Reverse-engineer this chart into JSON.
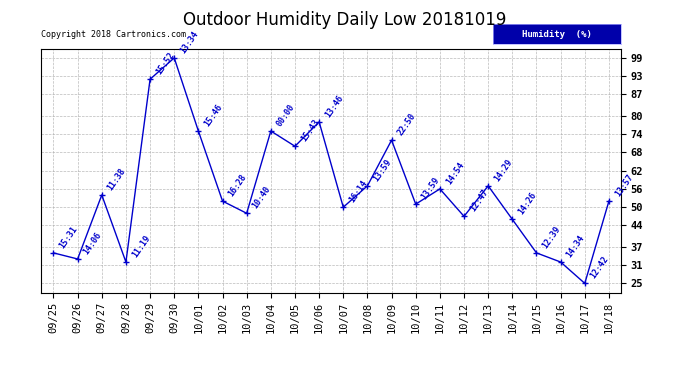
{
  "title": "Outdoor Humidity Daily Low 20181019",
  "copyright_text": "Copyright 2018 Cartronics.com",
  "legend_label": "Humidity  (%)",
  "x_labels": [
    "09/25",
    "09/26",
    "09/27",
    "09/28",
    "09/29",
    "09/30",
    "10/01",
    "10/02",
    "10/03",
    "10/04",
    "10/05",
    "10/06",
    "10/07",
    "10/08",
    "10/09",
    "10/10",
    "10/11",
    "10/12",
    "10/13",
    "10/14",
    "10/15",
    "10/16",
    "10/17",
    "10/18"
  ],
  "y_values": [
    35,
    33,
    54,
    32,
    92,
    99,
    75,
    52,
    48,
    75,
    70,
    78,
    50,
    57,
    72,
    51,
    56,
    47,
    57,
    46,
    35,
    32,
    25,
    52
  ],
  "point_labels": [
    "15:31",
    "14:06",
    "11:38",
    "11:19",
    "15:52",
    "13:34",
    "15:46",
    "16:28",
    "10:40",
    "00:00",
    "15:43",
    "13:46",
    "16:14",
    "13:59",
    "22:50",
    "13:59",
    "14:54",
    "12:47",
    "14:29",
    "14:26",
    "12:39",
    "14:34",
    "12:42",
    "13:57"
  ],
  "y_ticks": [
    25,
    31,
    37,
    44,
    50,
    56,
    62,
    68,
    74,
    80,
    87,
    93,
    99
  ],
  "line_color": "#0000cc",
  "marker_color": "#0000cc",
  "bg_color": "#ffffff",
  "grid_color": "#aaaaaa",
  "title_fontsize": 12,
  "tick_fontsize": 7.5,
  "legend_bg": "#0000aa",
  "legend_fg": "#ffffff"
}
